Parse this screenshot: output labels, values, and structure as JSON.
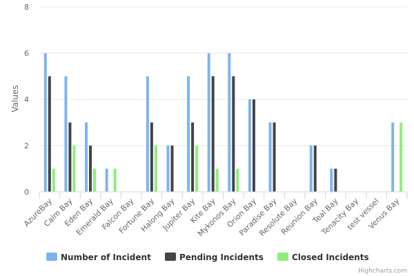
{
  "chart_data": {
    "type": "bar",
    "title": "",
    "xlabel": "",
    "ylabel": "Values",
    "ylim": [
      0,
      8
    ],
    "yticks": [
      0,
      2,
      4,
      6,
      8
    ],
    "grid": true,
    "legend_position": "bottom-center",
    "categories": [
      "AzureBay",
      "Calm Bay",
      "Eden Bay",
      "Emerald Bay",
      "Falcon Bay",
      "Fortune Bay",
      "Halong Bay",
      "Jupiter Bay",
      "Kite Bay",
      "Mykonos Bay",
      "Orion Bay",
      "Paradise Bay",
      "Resolute Bay",
      "Reunion Bay",
      "Teal Bay",
      "Tenacity Bay",
      "test vessel",
      "Venus Bay"
    ],
    "series": [
      {
        "name": "Number of Incident",
        "color": "#7cb5ec",
        "values": [
          6,
          5,
          3,
          1,
          0,
          5,
          2,
          5,
          6,
          6,
          4,
          3,
          0,
          2,
          1,
          0,
          0,
          3
        ]
      },
      {
        "name": "Pending Incidents",
        "color": "#434348",
        "values": [
          5,
          3,
          2,
          0,
          0,
          3,
          2,
          3,
          5,
          5,
          4,
          3,
          0,
          2,
          1,
          0,
          0,
          0
        ]
      },
      {
        "name": "Closed Incidents",
        "color": "#90ed7d",
        "values": [
          1,
          2,
          1,
          1,
          0,
          2,
          0,
          2,
          1,
          1,
          0,
          0,
          0,
          0,
          0,
          0,
          0,
          3
        ]
      }
    ]
  },
  "credits": "Highcharts.com"
}
